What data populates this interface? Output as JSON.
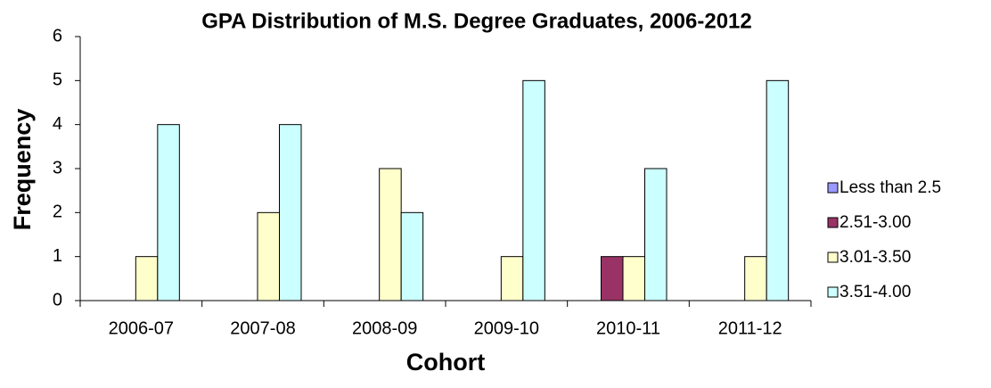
{
  "chart_data": {
    "type": "bar",
    "title": "GPA Distribution of M.S. Degree Graduates, 2006-2012",
    "x_label": "Cohort",
    "y_label": "Frequency",
    "categories": [
      "2006-07",
      "2007-08",
      "2008-09",
      "2009-10",
      "2010-11",
      "2011-12"
    ],
    "series": [
      {
        "name": "Less than 2.5",
        "color": "#9999ff",
        "values": [
          0,
          0,
          0,
          0,
          0,
          0
        ]
      },
      {
        "name": "2.51-3.00",
        "color": "#993366",
        "values": [
          0,
          0,
          0,
          0,
          1,
          0
        ]
      },
      {
        "name": "3.01-3.50",
        "color": "#ffffcc",
        "values": [
          1,
          2,
          3,
          1,
          1,
          1
        ]
      },
      {
        "name": "3.51-4.00",
        "color": "#ccffff",
        "values": [
          4,
          4,
          2,
          5,
          3,
          5
        ]
      }
    ],
    "ylim": [
      0,
      6
    ],
    "yticks": [
      0,
      1,
      2,
      3,
      4,
      5,
      6
    ],
    "grid": false,
    "legend": "right"
  }
}
